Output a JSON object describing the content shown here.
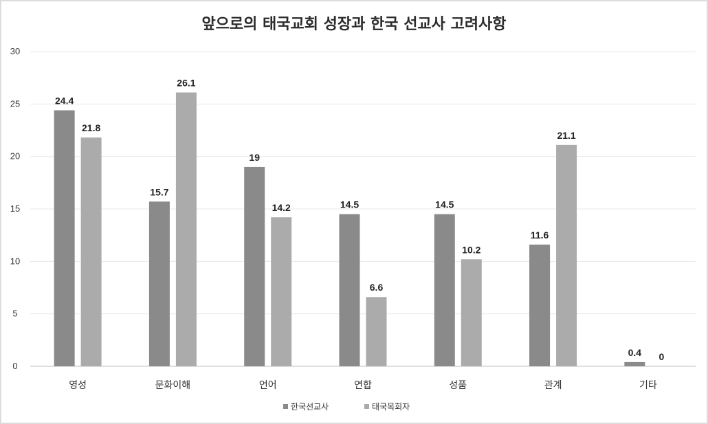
{
  "chart_data": {
    "type": "bar",
    "title": "앞으로의 태국교회 성장과 한국 선교사 고려사항",
    "xlabel": "",
    "ylabel": "",
    "ylim": [
      0,
      30
    ],
    "yticks": [
      0,
      5,
      10,
      15,
      20,
      25,
      30
    ],
    "grid": true,
    "legend_position": "bottom",
    "categories": [
      "영성",
      "문화이해",
      "언어",
      "연합",
      "성품",
      "관계",
      "기타"
    ],
    "series": [
      {
        "name": "한국선교사",
        "color": "#8a8a8a",
        "values": [
          24.4,
          15.7,
          19,
          14.5,
          14.5,
          11.6,
          0.4
        ]
      },
      {
        "name": "태국목회자",
        "color": "#ababab",
        "values": [
          21.8,
          26.1,
          14.2,
          6.6,
          10.2,
          21.1,
          0
        ]
      }
    ]
  }
}
